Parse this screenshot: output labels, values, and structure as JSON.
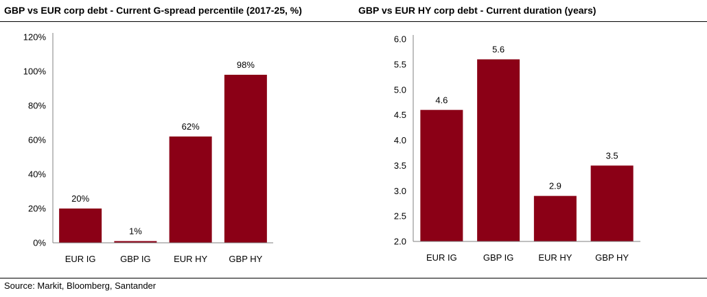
{
  "colors": {
    "bar": "#8b0016",
    "axis": "#7f7f7f"
  },
  "source": "Source: Markit, Bloomberg, Santander",
  "chart_data": [
    {
      "type": "bar",
      "title": "GBP vs EUR corp debt - Current G-spread percentile (2017-25, %)",
      "categories": [
        "EUR IG",
        "GBP IG",
        "EUR HY",
        "GBP HY"
      ],
      "values": [
        20,
        1,
        62,
        98
      ],
      "data_labels": [
        "20%",
        "1%",
        "62%",
        "98%"
      ],
      "ylim": [
        0,
        120
      ],
      "yticks": [
        0,
        20,
        40,
        60,
        80,
        100,
        120
      ],
      "ytick_labels": [
        "0%",
        "20%",
        "40%",
        "60%",
        "80%",
        "100%",
        "120%"
      ],
      "grid": false,
      "legend": "none"
    },
    {
      "type": "bar",
      "title": "GBP vs EUR HY corp debt - Current duration (years)",
      "categories": [
        "EUR IG",
        "GBP IG",
        "EUR HY",
        "GBP HY"
      ],
      "values": [
        4.6,
        5.6,
        2.9,
        3.5
      ],
      "data_labels": [
        "4.6",
        "5.6",
        "2.9",
        "3.5"
      ],
      "ylim": [
        2.0,
        6.0
      ],
      "yticks": [
        2.0,
        2.5,
        3.0,
        3.5,
        4.0,
        4.5,
        5.0,
        5.5,
        6.0
      ],
      "ytick_labels": [
        "2.0",
        "2.5",
        "3.0",
        "3.5",
        "4.0",
        "4.5",
        "5.0",
        "5.5",
        "6.0"
      ],
      "grid": false,
      "legend": "none"
    }
  ]
}
